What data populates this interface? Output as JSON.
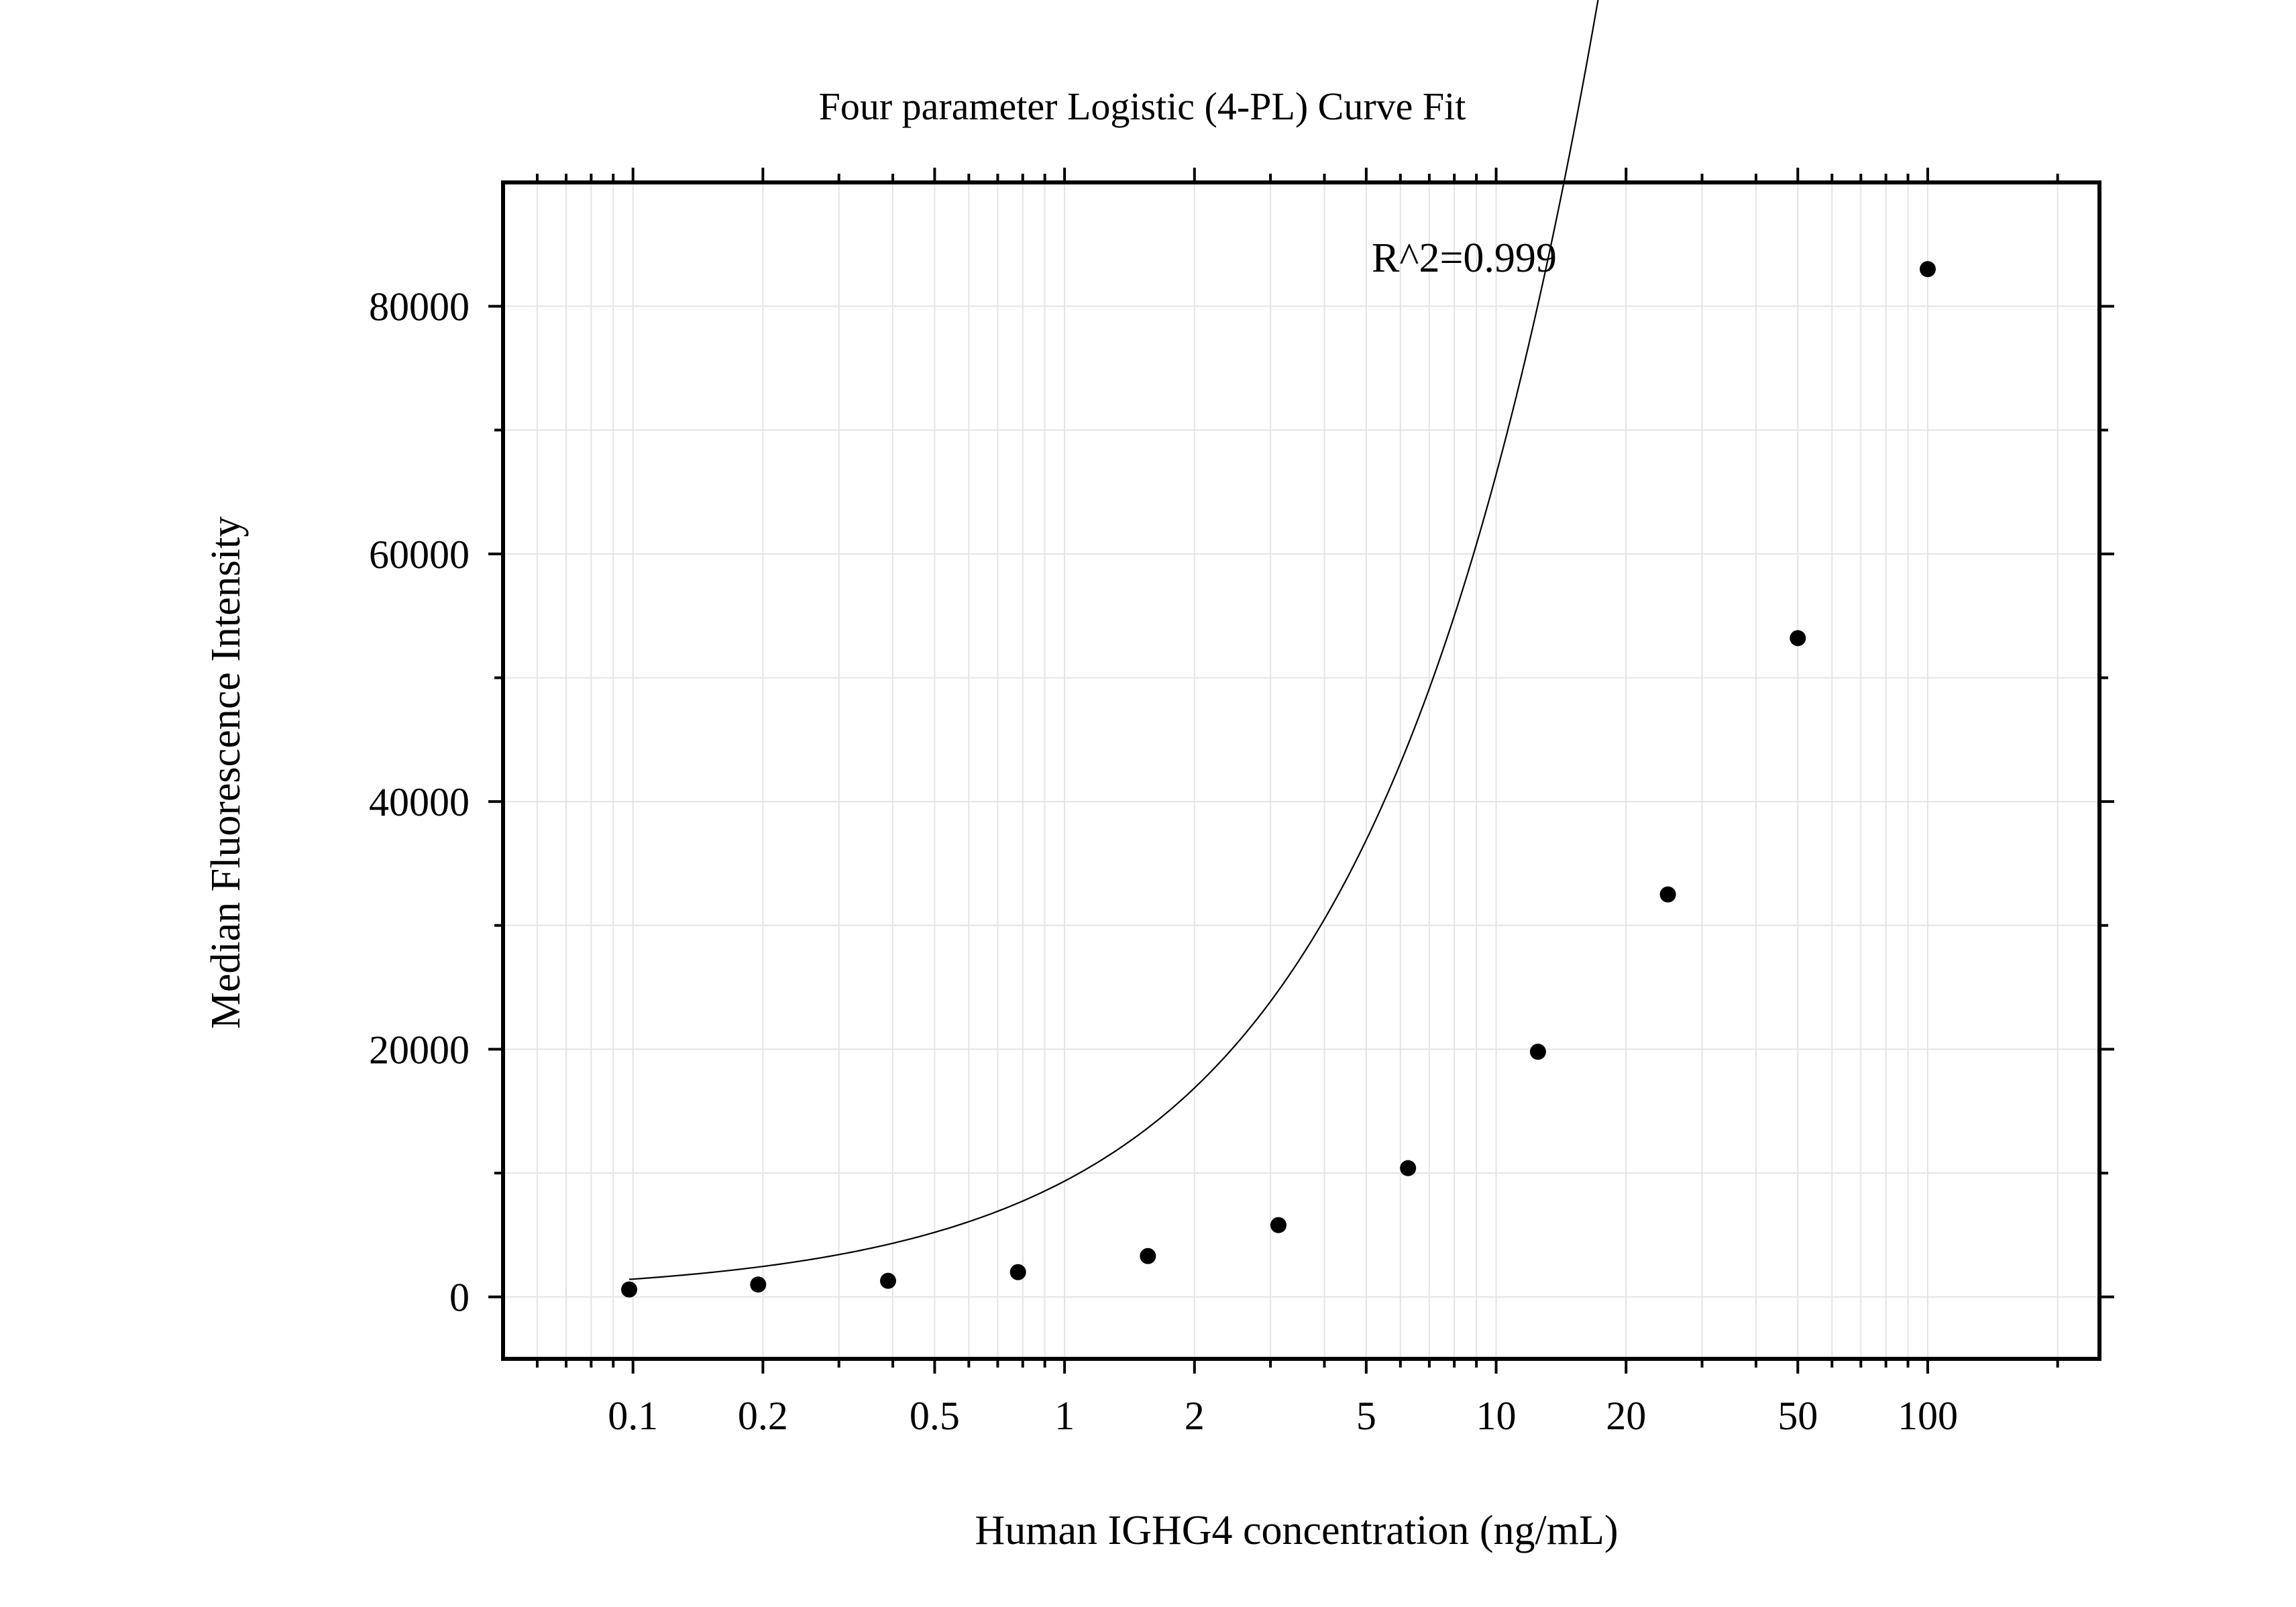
{
  "chart_data": {
    "type": "scatter",
    "title": "Four parameter Logistic (4-PL) Curve Fit",
    "xlabel": "Human IGHG4 concentration (ng/mL)",
    "ylabel": "Median Fluorescence Intensity",
    "x_scale": "log",
    "xlim": [
      0.05,
      250
    ],
    "ylim": [
      -5000,
      90000
    ],
    "x_ticks": [
      0.1,
      0.2,
      0.5,
      1,
      2,
      5,
      10,
      20,
      50,
      100
    ],
    "x_tick_labels": [
      "0.1",
      "0.2",
      "0.5",
      "1",
      "2",
      "5",
      "10",
      "20",
      "50",
      "100"
    ],
    "y_ticks": [
      0,
      20000,
      40000,
      60000,
      80000
    ],
    "y_tick_labels": [
      "0",
      "20000",
      "40000",
      "60000",
      "80000"
    ],
    "grid": true,
    "annotation": "R^2=0.999",
    "series": [
      {
        "x": [
          0.098,
          0.195,
          0.39,
          0.78,
          1.56,
          3.13,
          6.25,
          12.5,
          25,
          50,
          100
        ],
        "y": [
          600,
          1000,
          1300,
          2000,
          3300,
          5800,
          10400,
          19800,
          32500,
          53200,
          83000
        ]
      }
    ],
    "fit_curve": {
      "model": "4PL",
      "A": 200,
      "B": 0.87,
      "C": 600,
      "D": 2400000
    },
    "colors": {
      "points": "#000000",
      "curve": "#000000",
      "grid": "#e4e4e4",
      "frame": "#000000"
    }
  }
}
